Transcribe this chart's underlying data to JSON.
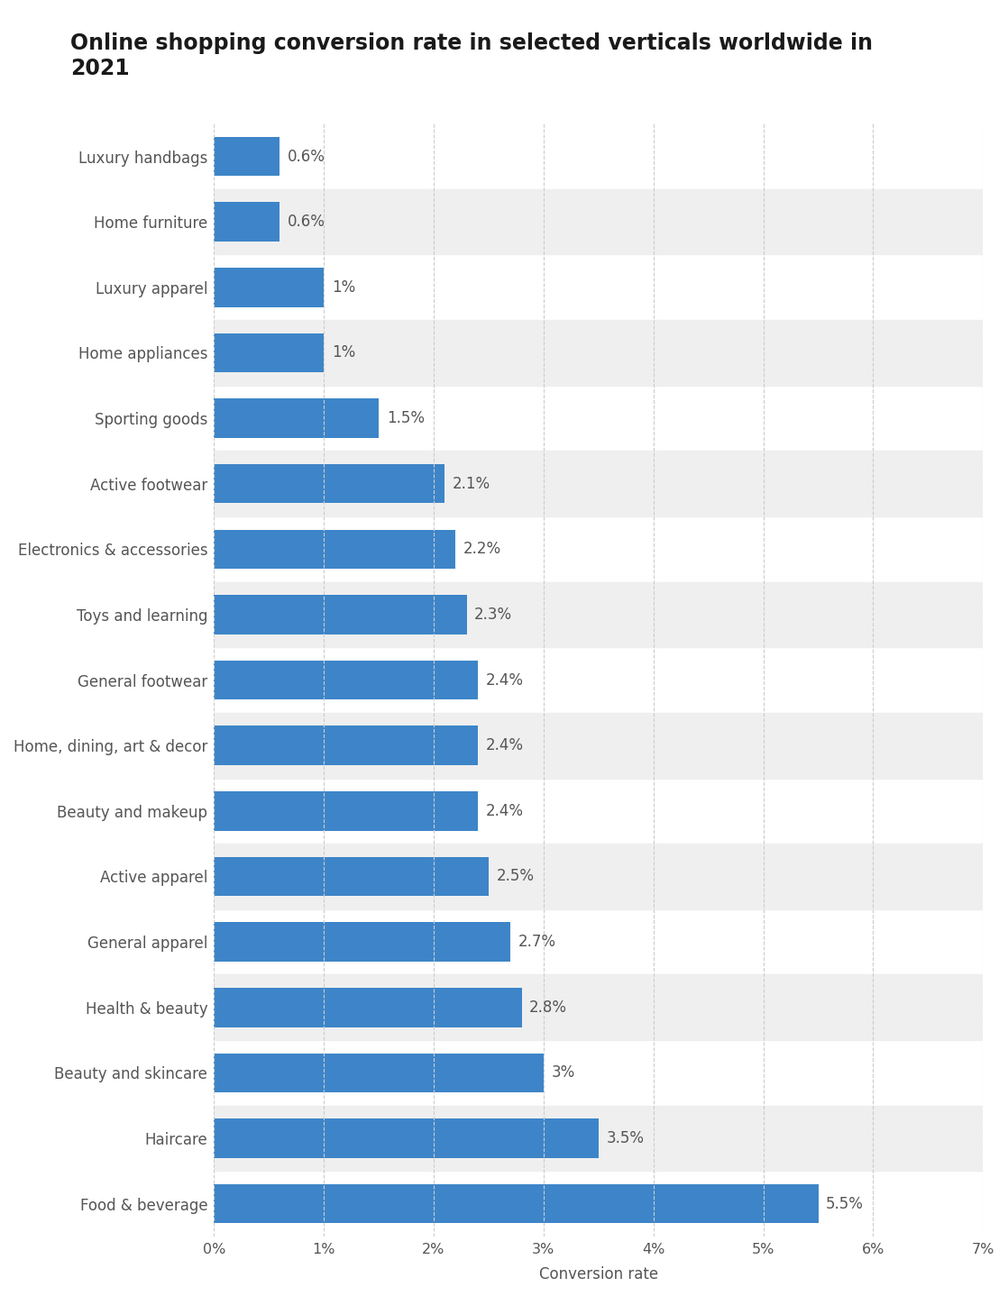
{
  "title": "Online shopping conversion rate in selected verticals worldwide in\n2021",
  "categories": [
    "Luxury handbags",
    "Home furniture",
    "Luxury apparel",
    "Home appliances",
    "Sporting goods",
    "Active footwear",
    "Electronics & accessories",
    "Toys and learning",
    "General footwear",
    "Home, dining, art & decor",
    "Beauty and makeup",
    "Active apparel",
    "General apparel",
    "Health & beauty",
    "Beauty and skincare",
    "Haircare",
    "Food & beverage"
  ],
  "values": [
    0.6,
    0.6,
    1.0,
    1.0,
    1.5,
    2.1,
    2.2,
    2.3,
    2.4,
    2.4,
    2.4,
    2.5,
    2.7,
    2.8,
    3.0,
    3.5,
    5.5
  ],
  "labels": [
    "0.6%",
    "0.6%",
    "1%",
    "1%",
    "1.5%",
    "2.1%",
    "2.2%",
    "2.3%",
    "2.4%",
    "2.4%",
    "2.4%",
    "2.5%",
    "2.7%",
    "2.8%",
    "3%",
    "3.5%",
    "5.5%"
  ],
  "bar_color": "#3d85c8",
  "background_color": "#ffffff",
  "row_alt_color": "#efefef",
  "xlabel": "Conversion rate",
  "xlim": [
    0,
    7
  ],
  "xtick_values": [
    0,
    1,
    2,
    3,
    4,
    5,
    6,
    7
  ],
  "xtick_labels": [
    "0%",
    "1%",
    "2%",
    "3%",
    "4%",
    "5%",
    "6%",
    "7%"
  ],
  "title_fontsize": 17,
  "label_fontsize": 12,
  "tick_fontsize": 11.5,
  "bar_label_fontsize": 12,
  "xlabel_fontsize": 12
}
